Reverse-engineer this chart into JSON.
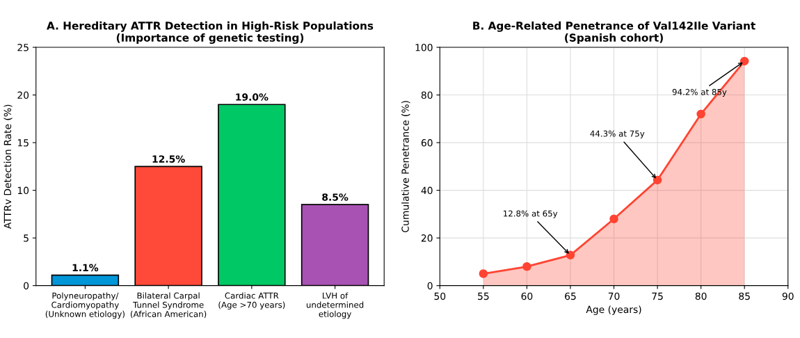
{
  "chart_data": [
    {
      "type": "bar",
      "title": "A. Hereditary ATTR Detection in High-Risk Populations\n(Importance of genetic testing)",
      "ylabel": "ATTRv Detection Rate (%)",
      "categories": [
        "Polyneuropathy/\nCardiomyopathy\n(Unknown etiology)",
        "Bilateral Carpal\nTunnel Syndrome\n(African American)",
        "Cardiac ATTR\n(Age >70 years)",
        "LVH of\nundetermined\netiology"
      ],
      "values": [
        1.1,
        12.5,
        19.0,
        8.5
      ],
      "colors": [
        "#0096d8",
        "#ff4a3a",
        "#00c864",
        "#a852b4"
      ],
      "value_labels": [
        "1.1%",
        "12.5%",
        "19.0%",
        "8.5%"
      ],
      "ylim": [
        0,
        25
      ],
      "yticks": [
        0,
        5,
        10,
        15,
        20,
        25
      ],
      "grid": false
    },
    {
      "type": "area",
      "title": "B. Age-Related Penetrance of Val142Ile Variant\n(Spanish cohort)",
      "xlabel": "Age (years)",
      "ylabel": "Cumulative Penetrance (%)",
      "x": [
        55,
        60,
        65,
        70,
        75,
        80,
        85
      ],
      "series": [
        {
          "color": "#ff4433",
          "values": [
            5,
            8,
            12.8,
            28,
            44.3,
            72,
            94.2
          ]
        }
      ],
      "marker": "circle",
      "annotations": [
        {
          "text": "12.8% at 65y",
          "x": 65,
          "y": 12.8
        },
        {
          "text": "44.3% at 75y",
          "x": 75,
          "y": 44.3
        },
        {
          "text": "94.2% at 85y",
          "x": 85,
          "y": 94.2
        }
      ],
      "xlim": [
        50,
        90
      ],
      "xticks": [
        50,
        55,
        60,
        65,
        70,
        75,
        80,
        85,
        90
      ],
      "ylim": [
        0,
        100
      ],
      "yticks": [
        0,
        20,
        40,
        60,
        80,
        100
      ],
      "grid": true
    }
  ]
}
